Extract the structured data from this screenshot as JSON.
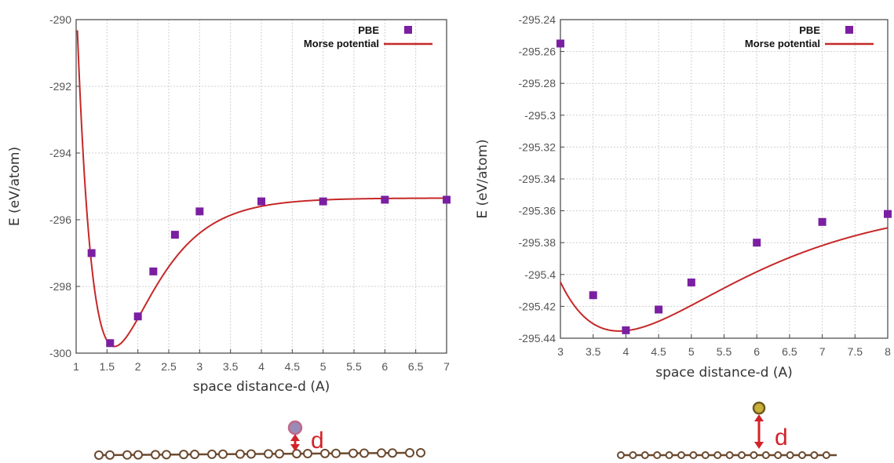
{
  "chart_data": [
    {
      "type": "scatter",
      "xlabel": "space distance-d (A)",
      "ylabel": "E (eV/atom)",
      "xlim": [
        1,
        7
      ],
      "ylim": [
        -300,
        -290
      ],
      "xticks": [
        "1",
        "1.5",
        "2",
        "2.5",
        "3",
        "3.5",
        "4",
        "4.5",
        "5",
        "5.5",
        "6",
        "6.5",
        "7"
      ],
      "yticks": [
        "-290",
        "-292",
        "-294",
        "-296",
        "-298",
        "-300"
      ],
      "grid": true,
      "legend_position": "top-right",
      "series": [
        {
          "name": "PBE",
          "marker": "square",
          "color": "#7b1fa2",
          "x": [
            1.25,
            1.55,
            2.0,
            2.25,
            2.6,
            3.0,
            4.0,
            5.0,
            6.0,
            7.0
          ],
          "y": [
            -297.0,
            -299.7,
            -298.9,
            -297.55,
            -296.45,
            -295.75,
            -295.45,
            -295.45,
            -295.4,
            -295.4
          ]
        },
        {
          "name": "Morse potential",
          "line": true,
          "color": "#c62828",
          "morse": {
            "De": 4.45,
            "a": 1.5,
            "re": 1.62,
            "Einf": -295.35
          }
        }
      ]
    },
    {
      "type": "scatter",
      "xlabel": "space distance-d (A)",
      "ylabel": "E (eV/atom)",
      "xlim": [
        3,
        8
      ],
      "ylim": [
        -295.44,
        -295.24
      ],
      "xticks": [
        "3",
        "3.5",
        "4",
        "4.5",
        "5",
        "5.5",
        "6",
        "6.5",
        "7",
        "7.5",
        "8"
      ],
      "yticks": [
        "-295.24",
        "-295.26",
        "-295.28",
        "-295.3",
        "-295.32",
        "-295.34",
        "-295.36",
        "-295.38",
        "-295.4",
        "-295.42",
        "-295.44"
      ],
      "grid": true,
      "legend_position": "top-right",
      "series": [
        {
          "name": "PBE",
          "marker": "square",
          "color": "#7b1fa2",
          "x": [
            3.0,
            3.5,
            4.0,
            4.5,
            5.0,
            6.0,
            7.0,
            8.0
          ],
          "y": [
            -295.255,
            -295.413,
            -295.435,
            -295.422,
            -295.405,
            -295.38,
            -295.367,
            -295.362
          ]
        },
        {
          "name": "Morse potential",
          "line": true,
          "color": "#c62828",
          "morse": {
            "De": 0.0825,
            "a": 0.53,
            "re": 3.9,
            "Einf": -295.353
          }
        }
      ]
    }
  ],
  "diagrams": [
    {
      "label": "d",
      "atom_color": "#9a8ab8",
      "chain_color": "#6b4a2f"
    },
    {
      "label": "d",
      "atom_color": "#c8b038",
      "chain_color": "#6b4a2f"
    }
  ]
}
